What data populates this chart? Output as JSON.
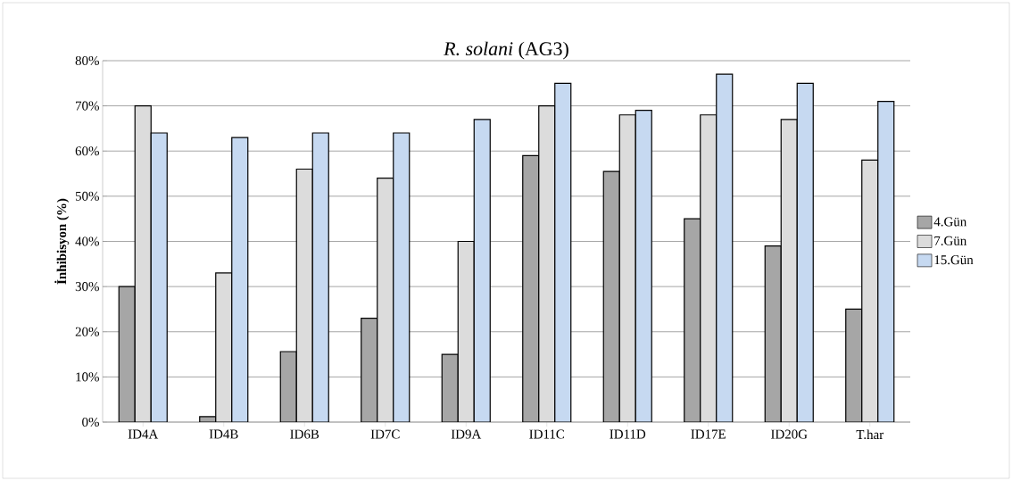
{
  "chart_data": {
    "type": "bar",
    "title": "*R. solani* (AG3)",
    "ylabel": "İnhibisyon (%)",
    "categories": [
      "ID4A",
      "ID4B",
      "ID6B",
      "ID7C",
      "ID9A",
      "ID11C",
      "ID11D",
      "ID17E",
      "ID20G",
      "T.har"
    ],
    "series": [
      {
        "name": "4.Gün",
        "color": "#a6a6a6",
        "values": [
          30,
          1.2,
          15.6,
          23,
          15,
          59,
          55.5,
          45,
          39,
          25
        ]
      },
      {
        "name": "7.Gün",
        "color": "#dcdcdc",
        "values": [
          70,
          33,
          56,
          54,
          40,
          70,
          68,
          68,
          67,
          58
        ]
      },
      {
        "name": "15.Gün",
        "color": "#c6d9f1",
        "values": [
          64,
          63,
          64,
          64,
          67,
          75,
          69,
          77,
          75,
          71
        ]
      }
    ],
    "ylim": [
      0,
      80
    ],
    "yticks": [
      {
        "value": 0,
        "label": "0%"
      },
      {
        "value": 10,
        "label": "10%"
      },
      {
        "value": 20,
        "label": "20%"
      },
      {
        "value": 30,
        "label": "30%"
      },
      {
        "value": 40,
        "label": "40%"
      },
      {
        "value": 50,
        "label": "50%"
      },
      {
        "value": 60,
        "label": "60%"
      },
      {
        "value": 70,
        "label": "70%"
      },
      {
        "value": 80,
        "label": "80%"
      }
    ],
    "grid": "y",
    "legend": "right"
  }
}
